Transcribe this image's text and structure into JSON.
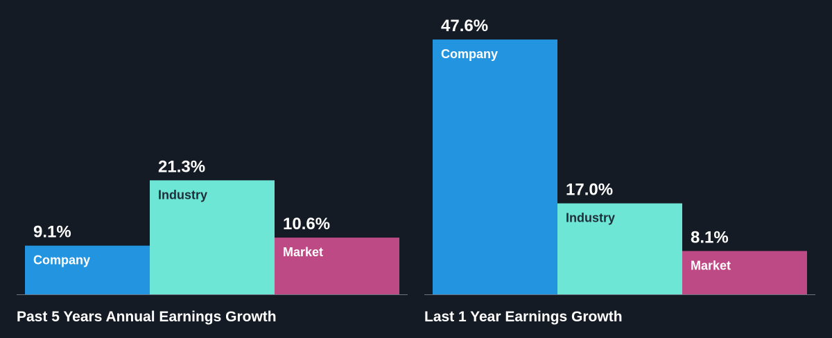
{
  "colors": {
    "background": "#151b24",
    "company": "#2394e0",
    "industry": "#6ee6d6",
    "market": "#bd4985",
    "baseline": "#6b7280",
    "label_on_dark_bar": "#ffffff",
    "label_on_light_bar": "#1f2d38"
  },
  "chart_data": [
    {
      "type": "bar",
      "title": "Past 5 Years Annual Earnings Growth",
      "categories": [
        "Company",
        "Industry",
        "Market"
      ],
      "values": [
        9.1,
        21.3,
        10.6
      ],
      "value_labels": [
        "9.1%",
        "21.3%",
        "10.6%"
      ],
      "ylim": [
        0,
        50
      ],
      "grid": false,
      "legend": "none"
    },
    {
      "type": "bar",
      "title": "Last 1 Year Earnings Growth",
      "categories": [
        "Company",
        "Industry",
        "Market"
      ],
      "values": [
        47.6,
        17.0,
        8.1
      ],
      "value_labels": [
        "47.6%",
        "17.0%",
        "8.1%"
      ],
      "ylim": [
        0,
        50
      ],
      "grid": false,
      "legend": "none"
    }
  ]
}
